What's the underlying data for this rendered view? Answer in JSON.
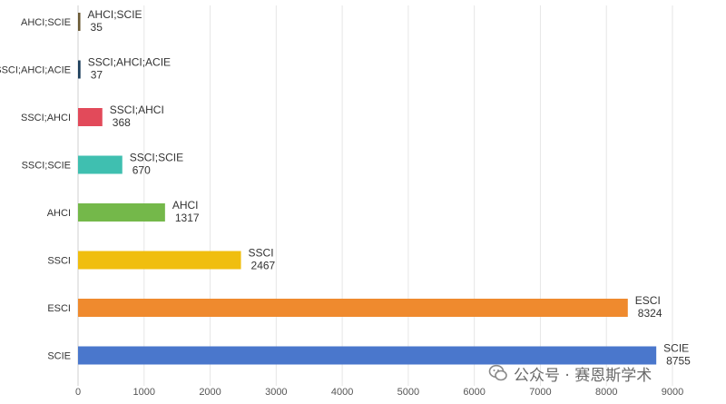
{
  "chart_data": {
    "type": "bar",
    "orientation": "horizontal",
    "title": "",
    "xlabel": "",
    "ylabel": "",
    "xlim": [
      0,
      9000
    ],
    "xticks": [
      0,
      1000,
      2000,
      3000,
      4000,
      5000,
      6000,
      7000,
      8000,
      9000
    ],
    "grid": true,
    "categories": [
      "AHCI;SCIE",
      "SSCI;AHCI;ACIE",
      "SSCI;AHCI",
      "SSCI;SCIE",
      "AHCI",
      "SSCI",
      "ESCI",
      "SCIE"
    ],
    "values": [
      35,
      37,
      368,
      670,
      1317,
      2467,
      8324,
      8755
    ],
    "colors": [
      "#6b5a35",
      "#1d3f5c",
      "#e24a5a",
      "#3fbfb0",
      "#74b84a",
      "#f0be0f",
      "#ef8a2e",
      "#4a77cc"
    ],
    "data_labels": [
      {
        "name": "AHCI;SCIE",
        "value": "35"
      },
      {
        "name": "SSCI;AHCI;ACIE",
        "value": "37"
      },
      {
        "name": "SSCI;AHCI",
        "value": "368"
      },
      {
        "name": "SSCI;SCIE",
        "value": "670"
      },
      {
        "name": "AHCI",
        "value": "1317"
      },
      {
        "name": "SSCI",
        "value": "2467"
      },
      {
        "name": "ESCI",
        "value": "8324"
      },
      {
        "name": "SCIE",
        "value": "8755"
      }
    ]
  },
  "watermark": {
    "text": "公众号 · 赛恩斯学术",
    "icon": "wechat-icon"
  }
}
